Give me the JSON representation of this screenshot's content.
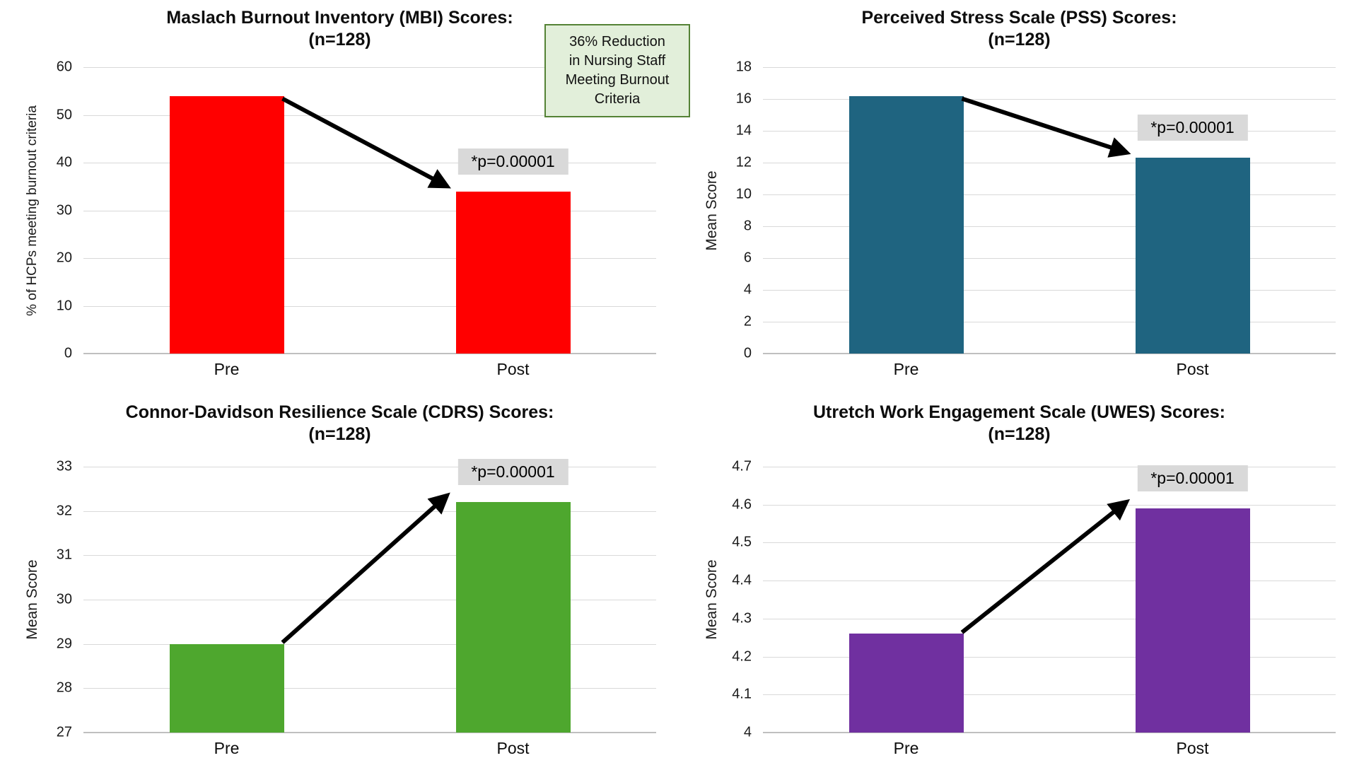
{
  "callout": {
    "lines": [
      "36% Reduction",
      "in Nursing Staff",
      "Meeting Burnout",
      "Criteria"
    ],
    "bg_color": "#e2efda",
    "border_color": "#548235"
  },
  "chart_data": [
    {
      "type": "bar",
      "title": "Maslach Burnout Inventory (MBI) Scores:",
      "subtitle": "(n=128)",
      "ylabel": "% of HCPs meeting burnout criteria",
      "xlabel": "",
      "categories": [
        "Pre",
        "Post"
      ],
      "values": [
        54,
        34
      ],
      "ylim": [
        0,
        60
      ],
      "yticks": [
        0,
        10,
        20,
        30,
        40,
        50,
        60
      ],
      "ytick_labels": [
        "0",
        "10",
        "20",
        "30",
        "40",
        "50",
        "60"
      ],
      "bar_color": "#ff0000",
      "annotation": "*p=0.00001",
      "annotation_bg": "#d9d9d9",
      "arrow_color": "#000000",
      "trend": "decrease",
      "grid": true,
      "legend": "none"
    },
    {
      "type": "bar",
      "title": "Perceived Stress Scale (PSS) Scores:",
      "subtitle": "(n=128)",
      "ylabel": "Mean Score",
      "xlabel": "",
      "categories": [
        "Pre",
        "Post"
      ],
      "values": [
        16.2,
        12.3
      ],
      "ylim": [
        0,
        18
      ],
      "yticks": [
        0,
        2,
        4,
        6,
        8,
        10,
        12,
        14,
        16,
        18
      ],
      "ytick_labels": [
        "0",
        "2",
        "4",
        "6",
        "8",
        "10",
        "12",
        "14",
        "16",
        "18"
      ],
      "bar_color": "#1f6480",
      "annotation": "*p=0.00001",
      "annotation_bg": "#d9d9d9",
      "arrow_color": "#000000",
      "trend": "decrease",
      "grid": true,
      "legend": "none"
    },
    {
      "type": "bar",
      "title": "Connor-Davidson Resilience Scale (CDRS) Scores:",
      "subtitle": "(n=128)",
      "ylabel": "Mean Score",
      "xlabel": "",
      "categories": [
        "Pre",
        "Post"
      ],
      "values": [
        29,
        32.2
      ],
      "ylim": [
        27,
        33
      ],
      "yticks": [
        27,
        28,
        29,
        30,
        31,
        32,
        33
      ],
      "ytick_labels": [
        "27",
        "28",
        "29",
        "30",
        "31",
        "32",
        "33"
      ],
      "bar_color": "#4ea72e",
      "annotation": "*p=0.00001",
      "annotation_bg": "#d9d9d9",
      "arrow_color": "#000000",
      "trend": "increase",
      "grid": true,
      "legend": "none"
    },
    {
      "type": "bar",
      "title": "Utretch Work Engagement Scale (UWES) Scores:",
      "subtitle": "(n=128)",
      "ylabel": "Mean Score",
      "xlabel": "",
      "categories": [
        "Pre",
        "Post"
      ],
      "values": [
        4.26,
        4.59
      ],
      "ylim": [
        4,
        4.7
      ],
      "yticks": [
        4,
        4.1,
        4.2,
        4.3,
        4.4,
        4.5,
        4.6,
        4.7
      ],
      "ytick_labels": [
        "4",
        "4.1",
        "4.2",
        "4.3",
        "4.4",
        "4.5",
        "4.6",
        "4.7"
      ],
      "bar_color": "#7030a0",
      "annotation": "*p=0.00001",
      "annotation_bg": "#d9d9d9",
      "arrow_color": "#000000",
      "trend": "increase",
      "grid": true,
      "legend": "none"
    }
  ]
}
